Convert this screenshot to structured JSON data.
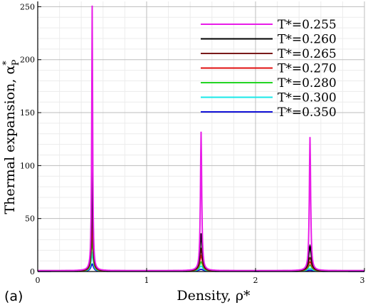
{
  "panel_label": "(a)",
  "chart_data": {
    "type": "line",
    "title": "",
    "xlabel": "Density, ρ*",
    "ylabel_main": "Thermal expansion, α",
    "ylabel_super": "*",
    "ylabel_sub": "P",
    "xlim": [
      0,
      3
    ],
    "ylim": [
      0,
      255
    ],
    "xticks": [
      0,
      1,
      2,
      3
    ],
    "xtick_labels": [
      "0",
      "1",
      "2",
      "3"
    ],
    "yticks": [
      0,
      50,
      100,
      150,
      200,
      250
    ],
    "ytick_labels": [
      "0",
      "50",
      "100",
      "150",
      "200",
      "250"
    ],
    "grid": true,
    "legend_position": "top-right",
    "peak_centers": [
      0.5,
      1.5,
      2.5
    ],
    "series": [
      {
        "name": "T*=0.255",
        "color": "#e81ce8",
        "peaks": [
          251,
          132,
          127
        ],
        "trough": 0.8
      },
      {
        "name": "T*=0.260",
        "color": "#000000",
        "peaks": [
          106,
          36,
          24
        ],
        "trough": 0.7
      },
      {
        "name": "T*=0.265",
        "color": "#7a1a1a",
        "peaks": [
          67,
          21,
          13
        ],
        "trough": 0.6
      },
      {
        "name": "T*=0.270",
        "color": "#e01010",
        "peaks": [
          48,
          15,
          9
        ],
        "trough": 0.5
      },
      {
        "name": "T*=0.280",
        "color": "#22d422",
        "peaks": [
          31,
          9,
          6
        ],
        "trough": 0.4
      },
      {
        "name": "T*=0.300",
        "color": "#18e8e8",
        "peaks": [
          17,
          5,
          3
        ],
        "trough": 0.3
      },
      {
        "name": "T*=0.350",
        "color": "#1414d8",
        "peaks": [
          7,
          2,
          1.2
        ],
        "trough": 0.2
      }
    ]
  }
}
